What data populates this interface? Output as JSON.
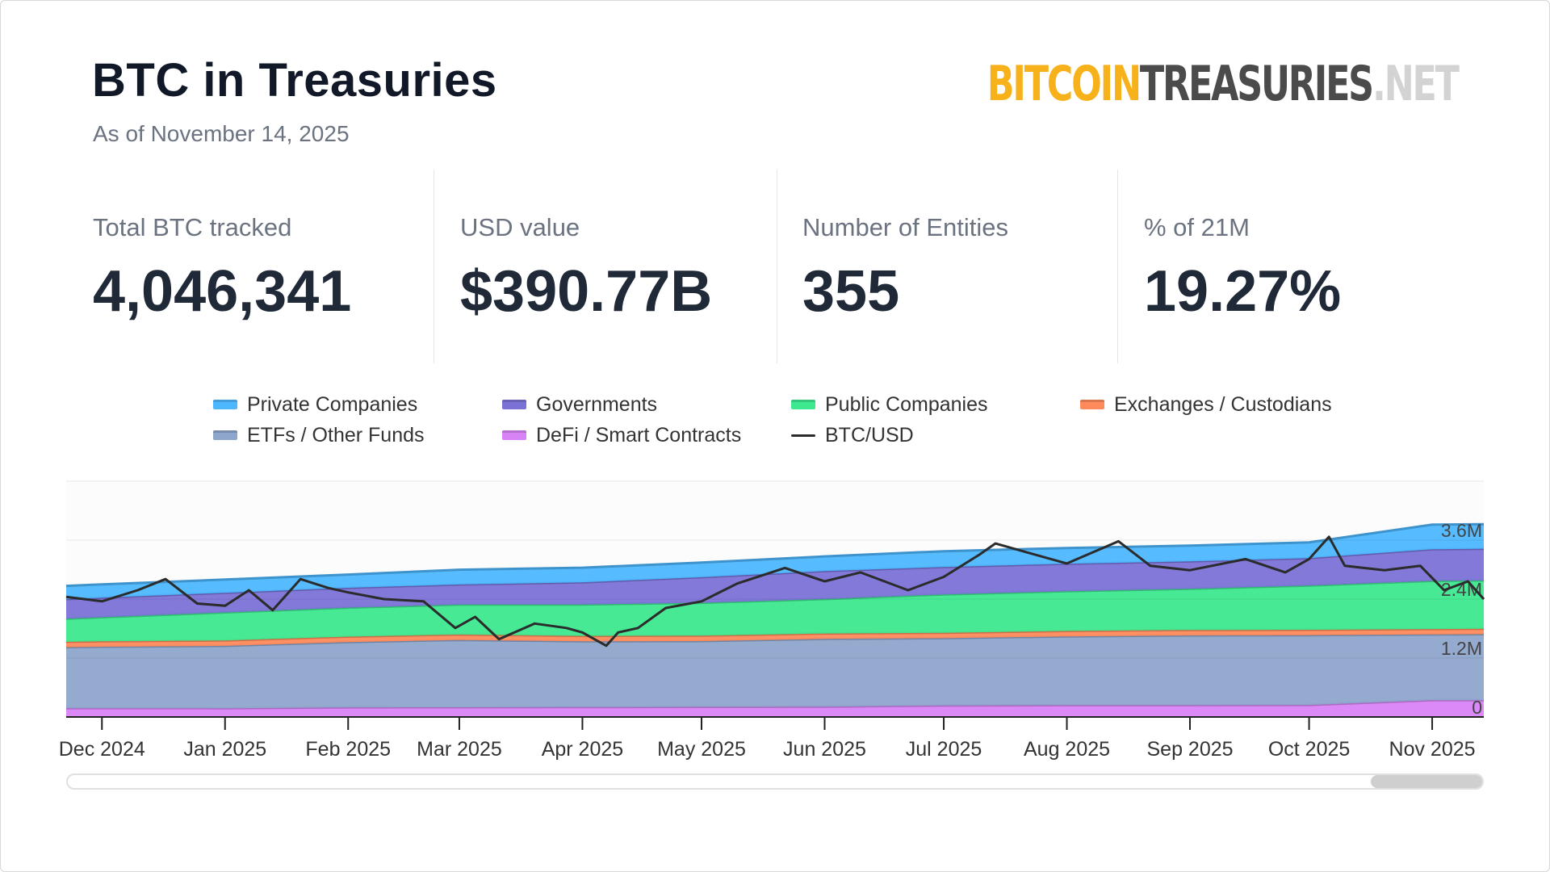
{
  "header": {
    "title": "BTC in Treasuries",
    "subtitle": "As of November 14, 2025",
    "logo": {
      "part1": "BITCOIN",
      "part2": "TREASURIES",
      "part3": ".NET"
    }
  },
  "stats": [
    {
      "label": "Total BTC tracked",
      "value": "4,046,341"
    },
    {
      "label": "USD value",
      "value": "$390.77B"
    },
    {
      "label": "Number of Entities",
      "value": "355"
    },
    {
      "label": "% of 21M",
      "value": "19.27%"
    }
  ],
  "colors": {
    "private": "#4db8ff",
    "governments": "#7b72d6",
    "public": "#3de88f",
    "exchanges": "#ff8a5b",
    "etfs": "#8ea5cc",
    "defi": "#d883f5",
    "btcusd": "#2b2b2b"
  },
  "chart_data": {
    "type": "area",
    "stacked": true,
    "x": [
      "2024-11-22",
      "2024-12-01",
      "2025-01-01",
      "2025-02-01",
      "2025-03-01",
      "2025-04-01",
      "2025-05-01",
      "2025-06-01",
      "2025-07-01",
      "2025-08-01",
      "2025-09-01",
      "2025-10-01",
      "2025-11-01",
      "2025-11-14"
    ],
    "x_tick_labels": [
      "Dec 2024",
      "Jan 2025",
      "Feb 2025",
      "Mar 2025",
      "Apr 2025",
      "May 2025",
      "Jun 2025",
      "Jul 2025",
      "Aug 2025",
      "Sep 2025",
      "Oct 2025",
      "Nov 2025"
    ],
    "x_tick_dates": [
      "2024-12-01",
      "2025-01-01",
      "2025-02-01",
      "2025-03-01",
      "2025-04-01",
      "2025-05-01",
      "2025-06-01",
      "2025-07-01",
      "2025-08-01",
      "2025-09-01",
      "2025-10-01",
      "2025-11-01"
    ],
    "y_tick_labels": [
      "0",
      "1.2M",
      "2.4M",
      "3.6M"
    ],
    "y_ticks": [
      0,
      1200000,
      2400000,
      3600000
    ],
    "ylim": [
      0,
      4800000
    ],
    "grid": true,
    "legend_position": "top",
    "series": [
      {
        "name": "DeFi / Smart Contracts",
        "color_key": "defi",
        "values": [
          180000,
          180000,
          178000,
          195000,
          198000,
          200000,
          205000,
          210000,
          235000,
          240000,
          240000,
          245000,
          340000,
          340000
        ]
      },
      {
        "name": "ETFs / Other Funds",
        "color_key": "etfs",
        "values": [
          1240000,
          1250000,
          1270000,
          1330000,
          1370000,
          1340000,
          1340000,
          1380000,
          1370000,
          1400000,
          1420000,
          1420000,
          1340000,
          1345000
        ]
      },
      {
        "name": "Exchanges / Custodians",
        "color_key": "exchanges",
        "values": [
          110000,
          110000,
          110000,
          110000,
          110000,
          110000,
          110000,
          110000,
          110000,
          110000,
          110000,
          110000,
          110000,
          110000
        ]
      },
      {
        "name": "Public Companies",
        "color_key": "public",
        "values": [
          470000,
          490000,
          570000,
          590000,
          610000,
          640000,
          670000,
          700000,
          780000,
          810000,
          840000,
          900000,
          980000,
          985000
        ]
      },
      {
        "name": "Governments",
        "color_key": "governments",
        "values": [
          400000,
          400000,
          400000,
          405000,
          410000,
          450000,
          520000,
          570000,
          560000,
          560000,
          560000,
          560000,
          645000,
          645000
        ]
      },
      {
        "name": "Private Companies",
        "color_key": "private",
        "values": [
          270000,
          270000,
          270000,
          270000,
          300000,
          300000,
          300000,
          300000,
          320000,
          320000,
          320000,
          320000,
          500000,
          500000
        ]
      }
    ],
    "line_series": {
      "name": "BTC/USD",
      "color_key": "btcusd",
      "x": [
        "2024-11-22",
        "2024-12-01",
        "2024-12-10",
        "2024-12-17",
        "2024-12-25",
        "2025-01-01",
        "2025-01-07",
        "2025-01-13",
        "2025-01-20",
        "2025-01-27",
        "2025-02-01",
        "2025-02-10",
        "2025-02-20",
        "2025-02-28",
        "2025-03-05",
        "2025-03-11",
        "2025-03-20",
        "2025-03-28",
        "2025-04-01",
        "2025-04-07",
        "2025-04-10",
        "2025-04-15",
        "2025-04-22",
        "2025-05-01",
        "2025-05-10",
        "2025-05-22",
        "2025-06-01",
        "2025-06-10",
        "2025-06-22",
        "2025-07-01",
        "2025-07-10",
        "2025-07-14",
        "2025-07-22",
        "2025-08-01",
        "2025-08-14",
        "2025-08-22",
        "2025-09-01",
        "2025-09-15",
        "2025-09-25",
        "2025-10-01",
        "2025-10-06",
        "2025-10-10",
        "2025-10-20",
        "2025-10-29",
        "2025-11-04",
        "2025-11-10",
        "2025-11-14"
      ],
      "values": [
        98000,
        96000,
        101000,
        106000,
        95000,
        94000,
        101000,
        92000,
        106000,
        102000,
        100000,
        97000,
        96000,
        84000,
        89000,
        79000,
        86000,
        84000,
        82000,
        76000,
        82000,
        84000,
        93000,
        96000,
        104000,
        111000,
        105000,
        109000,
        101000,
        107000,
        117000,
        122000,
        118000,
        113000,
        123000,
        112000,
        110000,
        115000,
        109000,
        115000,
        125000,
        112000,
        110000,
        112000,
        101000,
        105000,
        97000
      ],
      "ylim": [
        44000,
        150000
      ]
    }
  }
}
